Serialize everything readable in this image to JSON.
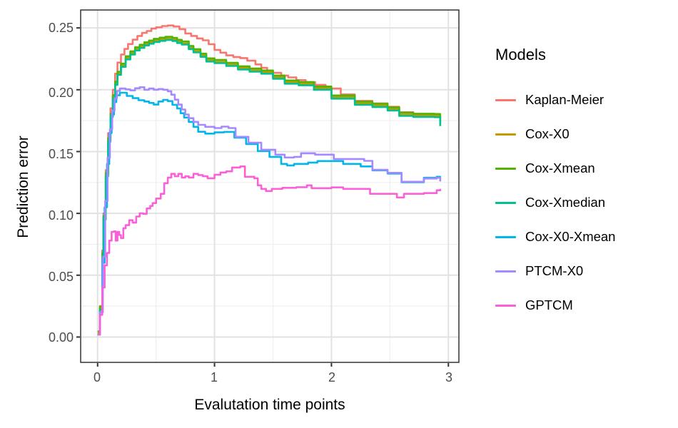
{
  "chart_data": {
    "type": "line",
    "line_style": "step-after",
    "title": "",
    "xlabel": "Evalutation time points",
    "ylabel": "Prediction error",
    "legend_title": "Models",
    "legend_position": "right",
    "grid": true,
    "xlim": [
      -0.145,
      3.09
    ],
    "ylim": [
      -0.0205,
      0.2645
    ],
    "x_major_ticks": [
      0,
      1,
      2,
      3
    ],
    "x_tick_labels": [
      "0",
      "1",
      "2",
      "3"
    ],
    "x_minor_ticks": [
      0.5,
      1.5,
      2.5
    ],
    "y_major_ticks": [
      0.0,
      0.05,
      0.1,
      0.15,
      0.2,
      0.25
    ],
    "y_tick_labels": [
      "0.00",
      "0.05",
      "0.10",
      "0.15",
      "0.20",
      "0.25"
    ],
    "y_minor_ticks": [
      0.025,
      0.075,
      0.125,
      0.175,
      0.225
    ],
    "colors": {
      "grid_major": "#e2e2e2",
      "grid_minor": "#efefef",
      "panel_border": "#333333",
      "tick_mark": "#333333",
      "axis_text": "#4d4d4d"
    },
    "series": [
      {
        "name": "Kaplan-Meier",
        "color": "#F8766D",
        "x": [
          0,
          0.02,
          0.04,
          0.05,
          0.07,
          0.09,
          0.11,
          0.13,
          0.15,
          0.17,
          0.2,
          0.23,
          0.26,
          0.3,
          0.34,
          0.38,
          0.42,
          0.46,
          0.5,
          0.55,
          0.6,
          0.65,
          0.7,
          0.75,
          0.8,
          0.85,
          0.9,
          0.95,
          1.0,
          1.05,
          1.1,
          1.16,
          1.22,
          1.28,
          1.35,
          1.4,
          1.45,
          1.5,
          1.57,
          1.63,
          1.7,
          1.78,
          1.86,
          1.95,
          2.08,
          2.2,
          2.35,
          2.48,
          2.58,
          2.7,
          2.88,
          2.93
        ],
        "y": [
          0.002,
          0.025,
          0.07,
          0.1,
          0.135,
          0.165,
          0.185,
          0.2,
          0.213,
          0.222,
          0.2285,
          0.233,
          0.237,
          0.2405,
          0.2435,
          0.246,
          0.2475,
          0.2495,
          0.2505,
          0.2515,
          0.252,
          0.2512,
          0.249,
          0.2455,
          0.2435,
          0.2415,
          0.24,
          0.2368,
          0.2322,
          0.23,
          0.2278,
          0.2265,
          0.2256,
          0.2235,
          0.2205,
          0.2177,
          0.2155,
          0.2137,
          0.2115,
          0.21,
          0.2078,
          0.2062,
          0.204,
          0.201,
          0.1962,
          0.191,
          0.189,
          0.1862,
          0.1818,
          0.18,
          0.179,
          0.1772
        ]
      },
      {
        "name": "Cox-X0",
        "color": "#C49A00",
        "x": [
          0,
          0.02,
          0.04,
          0.05,
          0.07,
          0.09,
          0.11,
          0.13,
          0.15,
          0.17,
          0.2,
          0.24,
          0.28,
          0.32,
          0.36,
          0.4,
          0.44,
          0.48,
          0.53,
          0.58,
          0.64,
          0.68,
          0.72,
          0.78,
          0.82,
          0.88,
          0.93,
          1.0,
          1.1,
          1.2,
          1.3,
          1.4,
          1.5,
          1.6,
          1.72,
          1.85,
          2.0,
          2.2,
          2.35,
          2.48,
          2.58,
          2.7,
          2.88,
          2.93
        ],
        "y": [
          0.0032,
          0.0232,
          0.0662,
          0.0962,
          0.1312,
          0.1592,
          0.1792,
          0.1942,
          0.2052,
          0.2132,
          0.2197,
          0.2257,
          0.2297,
          0.233,
          0.235,
          0.237,
          0.2384,
          0.2398,
          0.2407,
          0.2414,
          0.2406,
          0.239,
          0.2377,
          0.234,
          0.2314,
          0.2278,
          0.224,
          0.2227,
          0.2204,
          0.2176,
          0.2158,
          0.2142,
          0.2101,
          0.2061,
          0.2048,
          0.2012,
          0.194,
          0.189,
          0.1872,
          0.1844,
          0.18,
          0.1792,
          0.179,
          0.1718
        ]
      },
      {
        "name": "Cox-Xmean",
        "color": "#53B400",
        "x": [
          0,
          0.02,
          0.04,
          0.05,
          0.07,
          0.09,
          0.11,
          0.13,
          0.15,
          0.17,
          0.2,
          0.24,
          0.28,
          0.32,
          0.36,
          0.4,
          0.44,
          0.48,
          0.53,
          0.58,
          0.64,
          0.68,
          0.72,
          0.78,
          0.82,
          0.88,
          0.93,
          1.0,
          1.1,
          1.2,
          1.3,
          1.4,
          1.5,
          1.6,
          1.72,
          1.85,
          2.0,
          2.2,
          2.35,
          2.48,
          2.58,
          2.7,
          2.88,
          2.93
        ],
        "y": [
          0.0046,
          0.0246,
          0.0676,
          0.0976,
          0.1326,
          0.1606,
          0.1806,
          0.1956,
          0.2066,
          0.2146,
          0.2211,
          0.2271,
          0.2311,
          0.2344,
          0.2364,
          0.2384,
          0.2398,
          0.2412,
          0.2421,
          0.2428,
          0.242,
          0.2404,
          0.2391,
          0.2354,
          0.2328,
          0.2292,
          0.2254,
          0.2241,
          0.2218,
          0.219,
          0.2172,
          0.2156,
          0.2115,
          0.2075,
          0.2062,
          0.2026,
          0.1954,
          0.1904,
          0.1886,
          0.1858,
          0.1814,
          0.1806,
          0.1804,
          0.1732
        ]
      },
      {
        "name": "Cox-Xmedian",
        "color": "#00C094",
        "x": [
          0,
          0.02,
          0.04,
          0.05,
          0.07,
          0.09,
          0.11,
          0.13,
          0.15,
          0.17,
          0.2,
          0.24,
          0.28,
          0.32,
          0.36,
          0.4,
          0.44,
          0.48,
          0.53,
          0.58,
          0.64,
          0.68,
          0.72,
          0.78,
          0.82,
          0.88,
          0.93,
          1.0,
          1.1,
          1.2,
          1.3,
          1.4,
          1.5,
          1.6,
          1.72,
          1.85,
          2.0,
          2.2,
          2.35,
          2.48,
          2.58,
          2.7,
          2.88,
          2.93
        ],
        "y": [
          0.002,
          0.022,
          0.065,
          0.095,
          0.13,
          0.158,
          0.178,
          0.193,
          0.204,
          0.212,
          0.2185,
          0.2245,
          0.2285,
          0.2318,
          0.2338,
          0.2358,
          0.2372,
          0.2386,
          0.2395,
          0.2402,
          0.2394,
          0.2378,
          0.2365,
          0.2328,
          0.2302,
          0.2266,
          0.2228,
          0.2215,
          0.2192,
          0.2164,
          0.2146,
          0.213,
          0.2089,
          0.2049,
          0.2036,
          0.2,
          0.1928,
          0.1878,
          0.186,
          0.1832,
          0.1788,
          0.178,
          0.1778,
          0.1706
        ]
      },
      {
        "name": "Cox-X0-Xmean",
        "color": "#00B6EB",
        "x": [
          0,
          0.02,
          0.04,
          0.06,
          0.08,
          0.1,
          0.12,
          0.14,
          0.16,
          0.19,
          0.25,
          0.3,
          0.35,
          0.4,
          0.44,
          0.48,
          0.52,
          0.56,
          0.6,
          0.64,
          0.68,
          0.71,
          0.74,
          0.78,
          0.82,
          0.86,
          0.92,
          1.0,
          1.08,
          1.17,
          1.27,
          1.37,
          1.47,
          1.57,
          1.62,
          1.68,
          1.8,
          1.88,
          2.1,
          2.25,
          2.35,
          2.48,
          2.6,
          2.79,
          2.9,
          2.93
        ],
        "y": [
          0.002,
          0.02,
          0.06,
          0.105,
          0.14,
          0.165,
          0.18,
          0.19,
          0.1955,
          0.1976,
          0.195,
          0.1932,
          0.1915,
          0.1905,
          0.1893,
          0.188,
          0.1905,
          0.1918,
          0.1908,
          0.1878,
          0.1848,
          0.181,
          0.1775,
          0.174,
          0.17,
          0.166,
          0.1645,
          0.1655,
          0.1659,
          0.1613,
          0.1561,
          0.1504,
          0.1457,
          0.14,
          0.1388,
          0.14,
          0.1411,
          0.1423,
          0.14,
          0.138,
          0.1348,
          0.1322,
          0.1252,
          0.1288,
          0.1296,
          0.1264
        ]
      },
      {
        "name": "PTCM-X0",
        "color": "#A58AFF",
        "x": [
          0,
          0.02,
          0.045,
          0.065,
          0.085,
          0.105,
          0.125,
          0.145,
          0.165,
          0.19,
          0.24,
          0.28,
          0.32,
          0.36,
          0.4,
          0.44,
          0.48,
          0.52,
          0.56,
          0.6,
          0.63,
          0.66,
          0.69,
          0.72,
          0.75,
          0.78,
          0.82,
          0.86,
          0.92,
          1.0,
          1.06,
          1.12,
          1.18,
          1.29,
          1.4,
          1.52,
          1.6,
          1.68,
          1.74,
          1.86,
          2.02,
          2.28,
          2.35,
          2.48,
          2.6,
          2.79,
          2.9,
          2.93
        ],
        "y": [
          0.002,
          0.02,
          0.065,
          0.11,
          0.145,
          0.168,
          0.183,
          0.193,
          0.199,
          0.201,
          0.2003,
          0.1995,
          0.2012,
          0.202,
          0.2,
          0.201,
          0.2,
          0.2006,
          0.2,
          0.1988,
          0.196,
          0.192,
          0.188,
          0.184,
          0.18,
          0.177,
          0.174,
          0.1716,
          0.17,
          0.169,
          0.1702,
          0.169,
          0.1619,
          0.1572,
          0.1515,
          0.1475,
          0.1452,
          0.1457,
          0.1486,
          0.1475,
          0.144,
          0.1425,
          0.1352,
          0.1328,
          0.1256,
          0.1282,
          0.1288,
          0.1258
        ]
      },
      {
        "name": "GPTCM",
        "color": "#FB61D7",
        "x": [
          0,
          0.02,
          0.04,
          0.06,
          0.08,
          0.1,
          0.12,
          0.14,
          0.155,
          0.17,
          0.185,
          0.2,
          0.22,
          0.24,
          0.27,
          0.3,
          0.33,
          0.36,
          0.39,
          0.42,
          0.45,
          0.47,
          0.5,
          0.54,
          0.57,
          0.6,
          0.63,
          0.66,
          0.69,
          0.72,
          0.75,
          0.78,
          0.82,
          0.86,
          0.9,
          0.94,
          1.0,
          1.05,
          1.1,
          1.15,
          1.22,
          1.26,
          1.34,
          1.37,
          1.4,
          1.44,
          1.49,
          1.58,
          1.7,
          1.79,
          1.83,
          2.0,
          2.1,
          2.33,
          2.56,
          2.62,
          2.79,
          2.9,
          2.93
        ],
        "y": [
          0.002,
          0.018,
          0.04,
          0.058,
          0.068,
          0.078,
          0.085,
          0.0855,
          0.078,
          0.085,
          0.0825,
          0.08,
          0.088,
          0.0905,
          0.0945,
          0.0925,
          0.0975,
          0.1,
          0.0996,
          0.104,
          0.106,
          0.1083,
          0.112,
          0.1158,
          0.1244,
          0.129,
          0.132,
          0.13,
          0.132,
          0.129,
          0.13,
          0.129,
          0.132,
          0.131,
          0.13,
          0.1284,
          0.1313,
          0.1331,
          0.134,
          0.1371,
          0.138,
          0.1296,
          0.1284,
          0.1227,
          0.1198,
          0.1181,
          0.1198,
          0.1207,
          0.1212,
          0.1227,
          0.1204,
          0.121,
          0.1198,
          0.1158,
          0.1129,
          0.1158,
          0.1164,
          0.1187,
          0.1198
        ]
      }
    ]
  }
}
